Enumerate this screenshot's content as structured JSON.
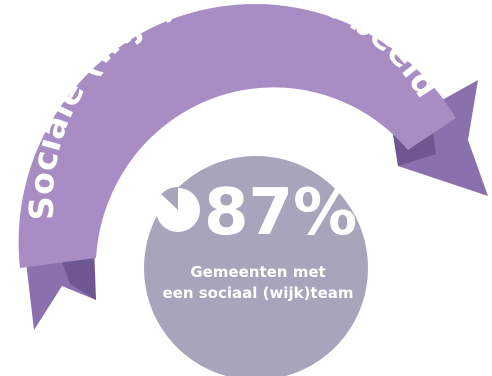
{
  "ribbon": {
    "title": "Sociale (wijk)teams in beeld"
  },
  "stat": {
    "value": "87%",
    "fraction": 0.87,
    "caption_line1": "Gemeenten met",
    "caption_line2": "een sociaal (wijk)team",
    "icon": "pie-chart-icon"
  },
  "colors": {
    "ribbon_front": "#A88DC4",
    "ribbon_back": "#8B70AE",
    "ribbon_shadow": "#6E5690",
    "circle": "#A8A4BC",
    "text": "#ffffff"
  }
}
